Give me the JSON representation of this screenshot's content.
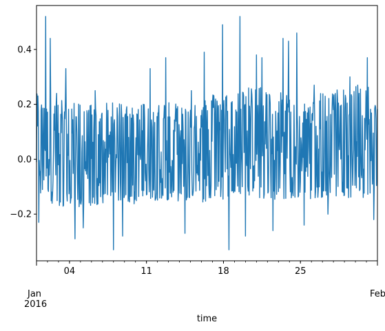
{
  "chart_data": {
    "type": "line",
    "title": "",
    "xlabel": "time",
    "ylabel": "",
    "xlim": [
      "2016-01-01",
      "2016-02-01"
    ],
    "ylim": [
      -0.37,
      0.56
    ],
    "grid": false,
    "yticks": [
      {
        "value": -0.2,
        "label": "−0.2"
      },
      {
        "value": 0.0,
        "label": "0.0"
      },
      {
        "value": 0.2,
        "label": "0.2"
      },
      {
        "value": 0.4,
        "label": "0.4"
      }
    ],
    "xticks_major": [
      {
        "date": "2016-01-01",
        "label": "Jan",
        "label2": "2016"
      },
      {
        "date": "2016-02-01",
        "label": "Feb",
        "label2": ""
      }
    ],
    "xticks_minor": [
      {
        "date": "2016-01-04",
        "label": "04"
      },
      {
        "date": "2016-01-11",
        "label": "11"
      },
      {
        "date": "2016-01-18",
        "label": "18"
      },
      {
        "date": "2016-01-25",
        "label": "25"
      }
    ],
    "series": [
      {
        "color": "#1f77b4",
        "sampling": "hourly",
        "start": "2016-01-01",
        "envelope_dates": [
          "2016-01-01",
          "2016-01-03",
          "2016-01-06",
          "2016-01-09",
          "2016-01-12",
          "2016-01-15",
          "2016-01-17",
          "2016-01-19",
          "2016-01-21",
          "2016-01-23",
          "2016-01-25",
          "2016-01-27",
          "2016-01-29",
          "2016-01-31",
          "2016-02-01"
        ],
        "envelope_max": [
          0.24,
          0.22,
          0.2,
          0.21,
          0.21,
          0.2,
          0.24,
          0.25,
          0.28,
          0.26,
          0.2,
          0.25,
          0.26,
          0.3,
          0.23
        ],
        "envelope_min": [
          -0.12,
          -0.18,
          -0.17,
          -0.17,
          -0.15,
          -0.16,
          -0.16,
          -0.13,
          -0.14,
          -0.15,
          -0.15,
          -0.14,
          -0.14,
          -0.14,
          -0.1
        ],
        "spikes": [
          {
            "date": "2016-01-01 05:00",
            "value": -0.23
          },
          {
            "date": "2016-01-01 20:00",
            "value": 0.52
          },
          {
            "date": "2016-01-02 06:00",
            "value": 0.44
          },
          {
            "date": "2016-01-02 20:00",
            "value": 0.24
          },
          {
            "date": "2016-01-03 16:00",
            "value": 0.33
          },
          {
            "date": "2016-01-04 12:00",
            "value": -0.29
          },
          {
            "date": "2016-01-05 06:00",
            "value": -0.25
          },
          {
            "date": "2016-01-06 08:00",
            "value": 0.25
          },
          {
            "date": "2016-01-08 00:00",
            "value": -0.33
          },
          {
            "date": "2016-01-08 20:00",
            "value": -0.28
          },
          {
            "date": "2016-01-11 08:00",
            "value": 0.33
          },
          {
            "date": "2016-01-12 18:00",
            "value": 0.37
          },
          {
            "date": "2016-01-14 12:00",
            "value": -0.27
          },
          {
            "date": "2016-01-15 02:00",
            "value": 0.25
          },
          {
            "date": "2016-01-16 06:00",
            "value": 0.39
          },
          {
            "date": "2016-01-17 22:00",
            "value": 0.49
          },
          {
            "date": "2016-01-18 12:00",
            "value": -0.33
          },
          {
            "date": "2016-01-19 12:00",
            "value": 0.52
          },
          {
            "date": "2016-01-20 00:00",
            "value": -0.28
          },
          {
            "date": "2016-01-21 00:00",
            "value": 0.38
          },
          {
            "date": "2016-01-21 12:00",
            "value": 0.37
          },
          {
            "date": "2016-01-22 12:00",
            "value": -0.26
          },
          {
            "date": "2016-01-23 10:00",
            "value": 0.44
          },
          {
            "date": "2016-01-23 22:00",
            "value": 0.43
          },
          {
            "date": "2016-01-24 16:00",
            "value": 0.46
          },
          {
            "date": "2016-01-25 08:00",
            "value": -0.24
          },
          {
            "date": "2016-01-26 06:00",
            "value": 0.27
          },
          {
            "date": "2016-01-27 12:00",
            "value": -0.2
          },
          {
            "date": "2016-01-29 12:00",
            "value": 0.3
          },
          {
            "date": "2016-01-31 02:00",
            "value": 0.37
          },
          {
            "date": "2016-01-31 16:00",
            "value": -0.22
          }
        ]
      }
    ]
  }
}
